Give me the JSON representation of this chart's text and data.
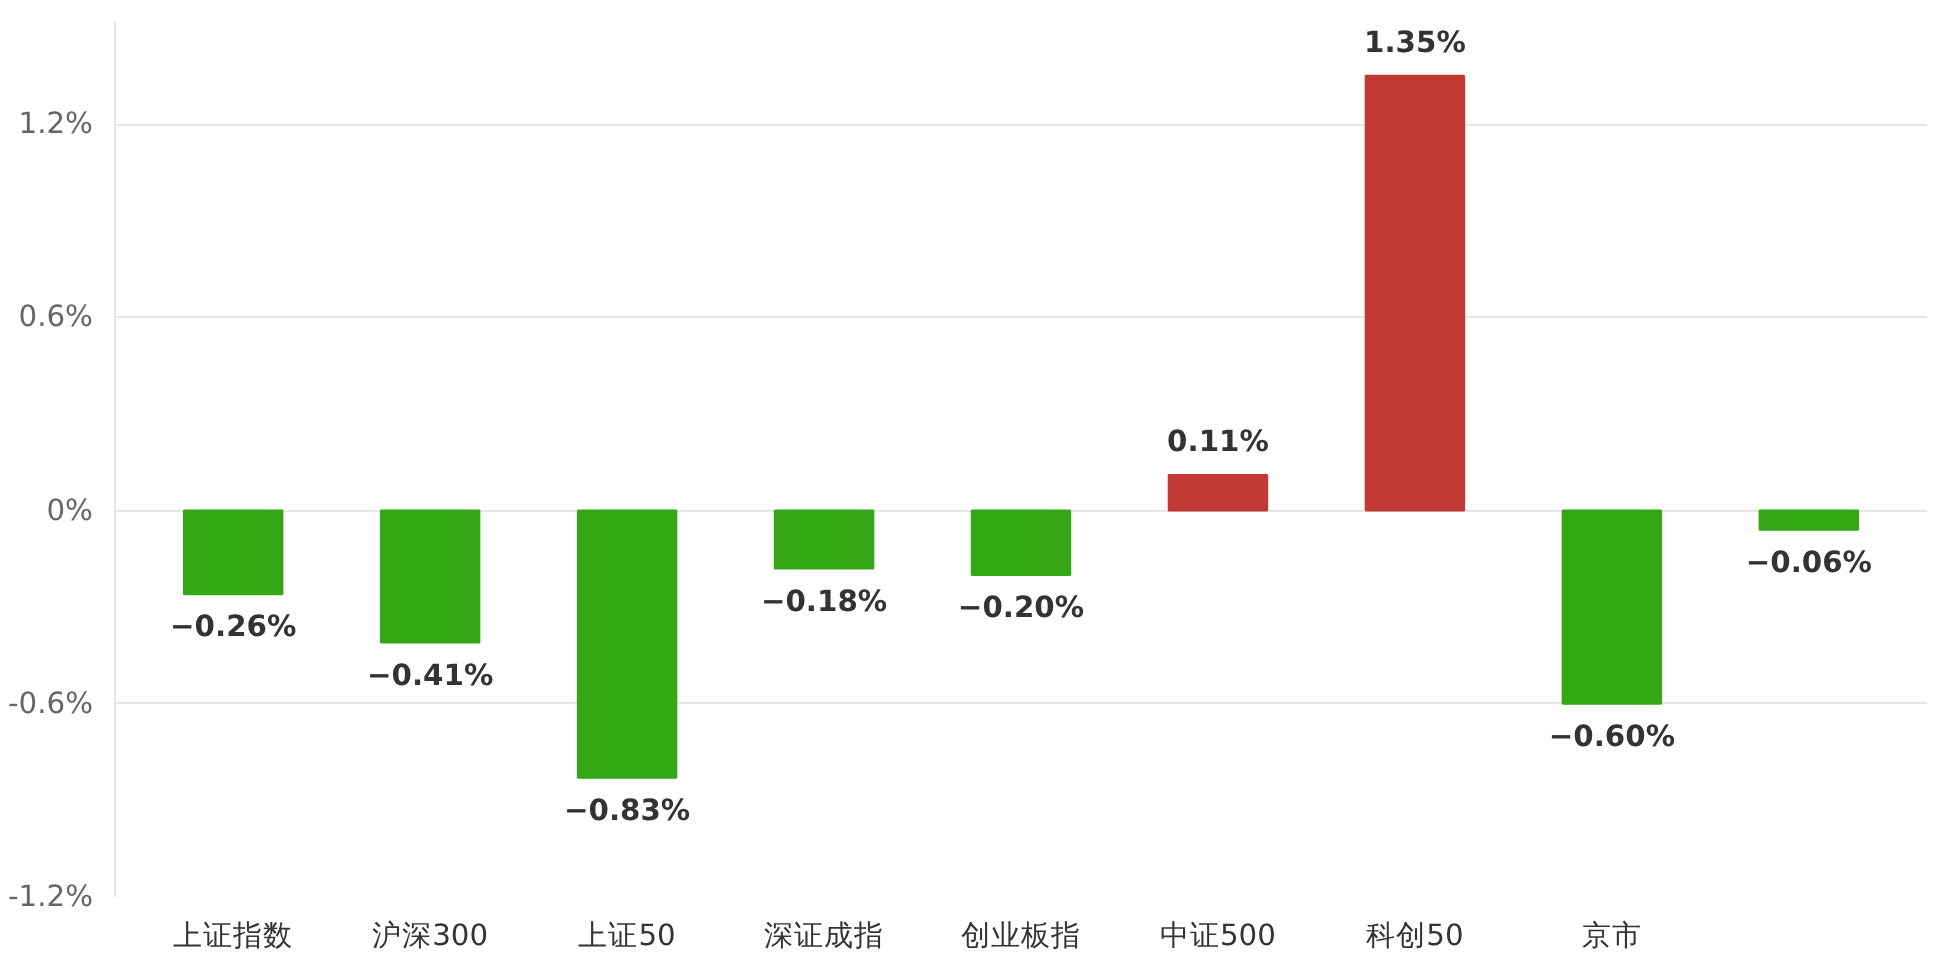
{
  "chart_data": {
    "type": "bar",
    "categories": [
      "上证指数",
      "沪深300",
      "上证50",
      "深证成指",
      "创业板指",
      "中证500",
      "科创50",
      "京市",
      null
    ],
    "values": [
      -0.26,
      -0.41,
      -0.83,
      -0.18,
      -0.2,
      0.11,
      1.35,
      -0.6,
      -0.06
    ],
    "colors": [
      "#33a814",
      "#33a814",
      "#33a814",
      "#33a814",
      "#33a814",
      "#c23a33",
      "#c23a33",
      "#33a814",
      "#33a814"
    ],
    "value_labels": [
      "−0.26%",
      "−0.41%",
      "−0.83%",
      "−0.18%",
      "−0.20%",
      "0.11%",
      "1.35%",
      "−0.60%",
      "−0.06%"
    ],
    "ylim": [
      -1.2,
      1.52
    ],
    "yticks": [
      {
        "value": -1.2,
        "label": "-1.2%"
      },
      {
        "value": -0.6,
        "label": "-0.6%"
      },
      {
        "value": 0,
        "label": "0%"
      },
      {
        "value": 0.6,
        "label": "0.6%"
      },
      {
        "value": 1.2,
        "label": "1.2%"
      }
    ],
    "grid": "y"
  }
}
